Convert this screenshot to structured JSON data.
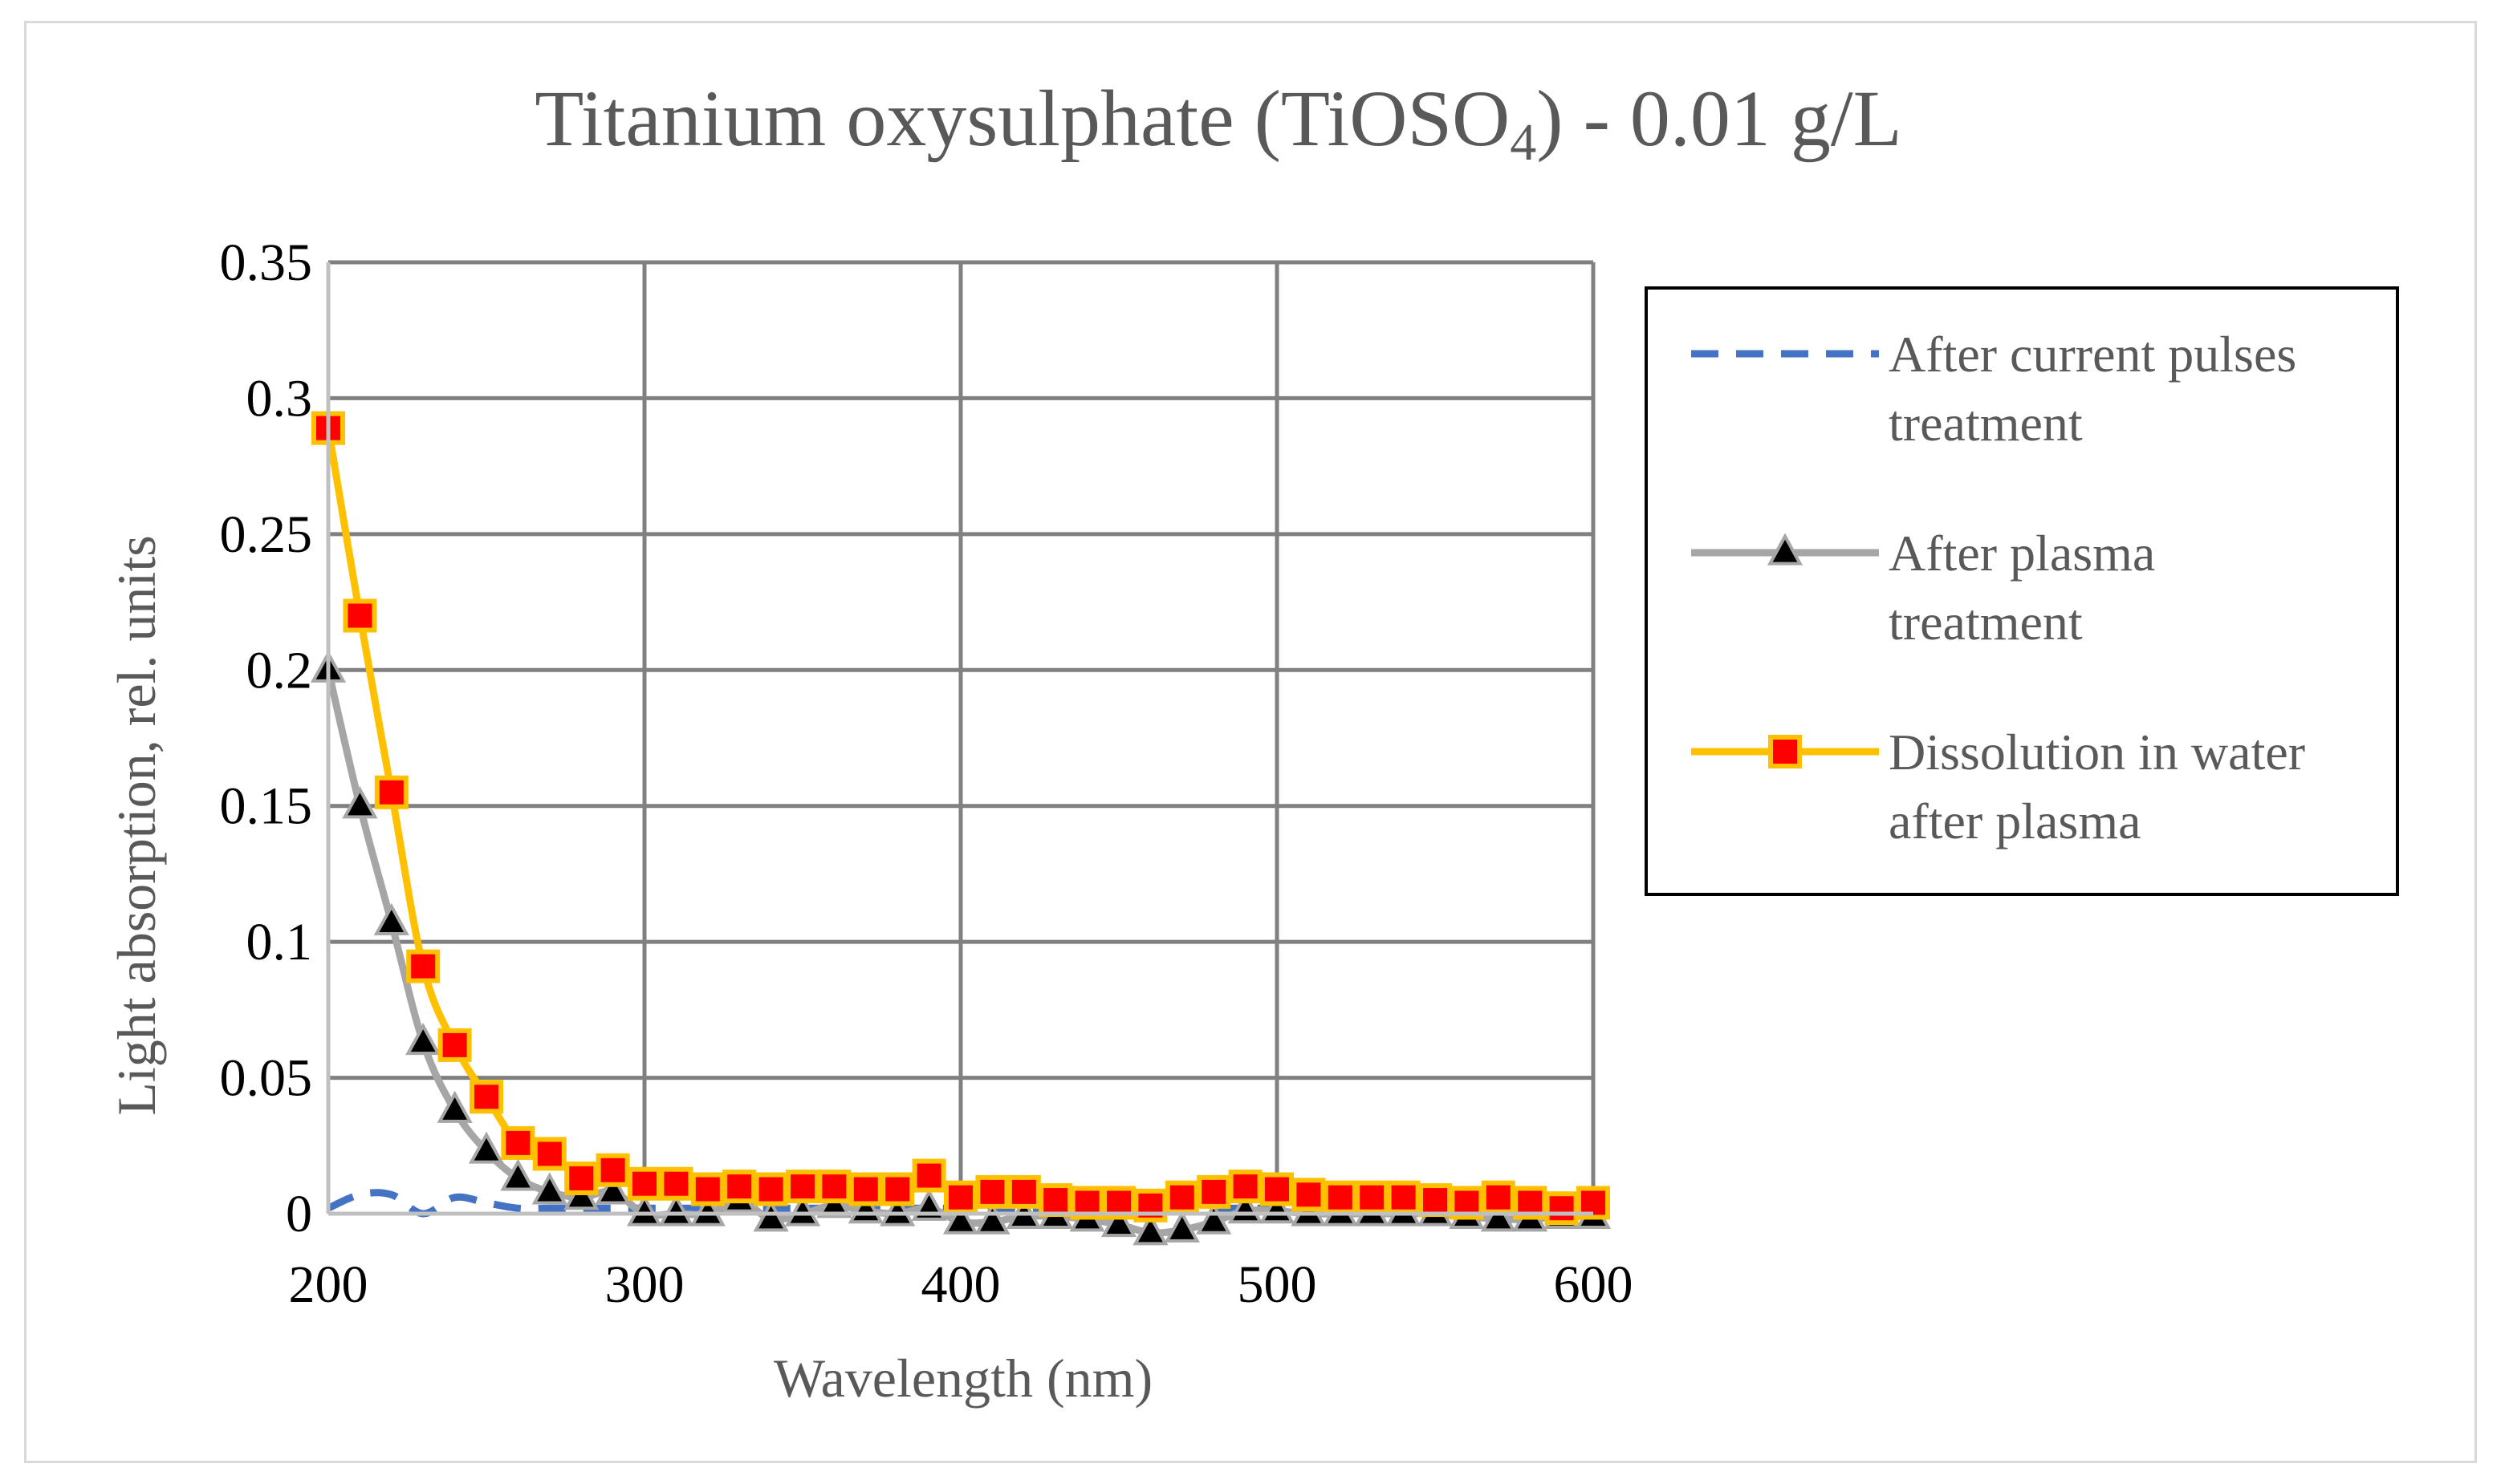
{
  "chart_data": {
    "type": "line",
    "title": "Titanium oxysulphate (TiOSO",
    "title_subscript": "4",
    "title_suffix": ") - 0.01 g/L",
    "xlabel": "Wavelength (nm)",
    "ylabel": "Light absorption, rel. units",
    "xlim": [
      200,
      600
    ],
    "ylim": [
      0,
      0.35
    ],
    "x_ticks": [
      "200",
      "300",
      "400",
      "500",
      "600"
    ],
    "y_ticks": [
      "0",
      "0.05",
      "0.1",
      "0.15",
      "0.2",
      "0.25",
      "0.3",
      "0.35"
    ],
    "grid": true,
    "legend_position": "right",
    "x": [
      200,
      210,
      220,
      230,
      240,
      250,
      260,
      270,
      280,
      290,
      300,
      310,
      320,
      330,
      340,
      350,
      360,
      370,
      380,
      390,
      400,
      410,
      420,
      430,
      440,
      450,
      460,
      470,
      480,
      490,
      500,
      510,
      520,
      530,
      540,
      550,
      560,
      570,
      580,
      590,
      600
    ],
    "series": [
      {
        "name": "After current pulses treatment",
        "color": "#4472c4",
        "style": "dashed",
        "marker": "none",
        "values": [
          0.002,
          0.007,
          0.007,
          0.0,
          0.006,
          0.004,
          0.002,
          0.002,
          0.002,
          0.002,
          0.002,
          0.002,
          0.002,
          0.002,
          0.002,
          0.002,
          0.002,
          0.002,
          0.002,
          0.002,
          0.002,
          0.002,
          0.002,
          0.002,
          0.002,
          0.002,
          0.002,
          0.002,
          0.002,
          0.002,
          0.002,
          0.002,
          0.002,
          0.002,
          0.002,
          0.002,
          0.002,
          0.002,
          0.002,
          0.002,
          0.002
        ]
      },
      {
        "name": "After plasma treatment",
        "color": "#a6a6a6",
        "style": "solid",
        "marker": "triangle",
        "marker_fill": "#000000",
        "values": [
          0.2,
          0.15,
          0.107,
          0.063,
          0.038,
          0.023,
          0.013,
          0.008,
          0.006,
          0.008,
          0.0,
          0.0,
          0.0,
          0.005,
          -0.002,
          0.0,
          0.003,
          0.001,
          0.0,
          0.002,
          -0.003,
          -0.003,
          -0.001,
          -0.001,
          -0.002,
          -0.004,
          -0.007,
          -0.006,
          -0.003,
          0.001,
          0.001,
          0.0,
          0.0,
          0.0,
          0.0,
          0.0,
          -0.001,
          -0.002,
          -0.002,
          -0.001,
          -0.001
        ]
      },
      {
        "name": "Dissolution in water after plasma",
        "color": "#ffc000",
        "style": "solid",
        "marker": "square",
        "marker_fill": "#ff0000",
        "values": [
          0.289,
          0.22,
          0.155,
          0.091,
          0.062,
          0.043,
          0.026,
          0.022,
          0.013,
          0.016,
          0.011,
          0.011,
          0.009,
          0.01,
          0.009,
          0.01,
          0.01,
          0.009,
          0.009,
          0.014,
          0.006,
          0.008,
          0.008,
          0.005,
          0.004,
          0.004,
          0.003,
          0.006,
          0.008,
          0.01,
          0.009,
          0.007,
          0.006,
          0.006,
          0.006,
          0.005,
          0.004,
          0.006,
          0.004,
          0.002,
          0.004
        ]
      }
    ],
    "legend_lines": [
      [
        "After current pulses",
        "treatment"
      ],
      [
        "After plasma",
        "treatment"
      ],
      [
        "Dissolution in water",
        "after plasma"
      ]
    ]
  }
}
